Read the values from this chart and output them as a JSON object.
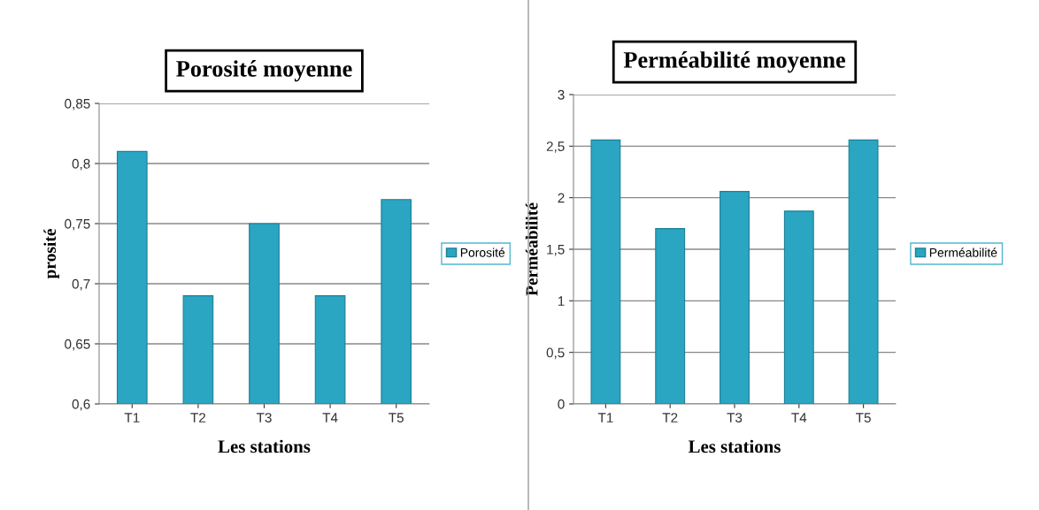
{
  "chart_data": [
    {
      "type": "bar",
      "title": "Porosité moyenne",
      "xlabel": "Les stations",
      "ylabel": "prosité",
      "categories": [
        "T1",
        "T2",
        "T3",
        "T4",
        "T5"
      ],
      "series": [
        {
          "name": "Porosité",
          "color": "#2aa5c2",
          "values": [
            0.81,
            0.69,
            0.75,
            0.69,
            0.77
          ]
        }
      ],
      "ylim": [
        0.6,
        0.85
      ],
      "yticks": [
        {
          "value": 0.6,
          "label": "0,6"
        },
        {
          "value": 0.65,
          "label": "0,65"
        },
        {
          "value": 0.7,
          "label": "0,7"
        },
        {
          "value": 0.75,
          "label": "0,75"
        },
        {
          "value": 0.8,
          "label": "0,8"
        },
        {
          "value": 0.85,
          "label": "0,85"
        }
      ],
      "grid": "y",
      "legend": "right"
    },
    {
      "type": "bar",
      "title": "Perméabilité moyenne",
      "xlabel": "Les stations",
      "ylabel": "Perméabilité",
      "categories": [
        "T1",
        "T2",
        "T3",
        "T4",
        "T5"
      ],
      "series": [
        {
          "name": "Perméabilité",
          "color": "#2aa5c2",
          "values": [
            2.56,
            1.7,
            2.06,
            1.87,
            2.56
          ]
        }
      ],
      "ylim": [
        0,
        3
      ],
      "yticks": [
        0,
        {
          "value": 0.5,
          "label": "0,5"
        },
        1,
        {
          "value": 1.5,
          "label": "1,5"
        },
        2,
        {
          "value": 2.5,
          "label": "2,5"
        },
        3
      ],
      "grid": "y",
      "legend": "right"
    }
  ]
}
